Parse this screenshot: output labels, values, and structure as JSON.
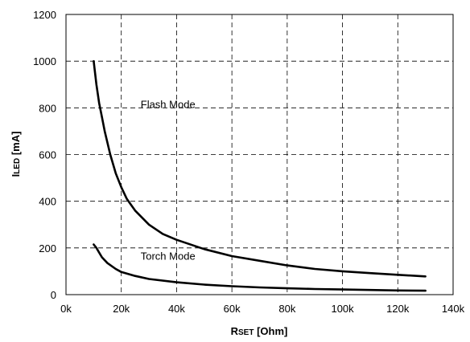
{
  "chart_data": {
    "type": "line",
    "title": "",
    "xlabel": {
      "main_small": "R",
      "sub": "SET",
      "rest": " [Ohm]"
    },
    "ylabel": {
      "main_small": "I",
      "sub": "LED",
      "rest": " [mA]"
    },
    "xlim": [
      0,
      140000
    ],
    "ylim": [
      0,
      1200
    ],
    "x_ticks": [
      0,
      20000,
      40000,
      60000,
      80000,
      100000,
      120000,
      140000
    ],
    "x_tick_labels": [
      "0k",
      "20k",
      "40k",
      "60k",
      "80k",
      "100k",
      "120k",
      "140k"
    ],
    "y_ticks": [
      0,
      200,
      400,
      600,
      800,
      1000,
      1200
    ],
    "y_tick_labels": [
      "0",
      "200",
      "400",
      "600",
      "800",
      "1000",
      "1200"
    ],
    "grid": true,
    "series": [
      {
        "name": "Flash Mode",
        "x": [
          10000,
          11000,
          12000,
          13000,
          14000,
          16000,
          18000,
          20000,
          22000,
          25000,
          30000,
          35000,
          40000,
          50000,
          60000,
          70000,
          80000,
          90000,
          100000,
          110000,
          120000,
          130000
        ],
        "y": [
          1000,
          900,
          820,
          760,
          700,
          600,
          520,
          460,
          410,
          360,
          300,
          260,
          235,
          195,
          165,
          145,
          125,
          110,
          100,
          92,
          85,
          78
        ]
      },
      {
        "name": "Torch Mode",
        "x": [
          10000,
          11000,
          12000,
          13000,
          15000,
          18000,
          20000,
          25000,
          30000,
          40000,
          50000,
          60000,
          70000,
          80000,
          90000,
          100000,
          110000,
          120000,
          130000
        ],
        "y": [
          215,
          200,
          180,
          160,
          135,
          110,
          97,
          80,
          67,
          53,
          43,
          36,
          31,
          27,
          24,
          22,
          20,
          18,
          17
        ]
      }
    ],
    "annotations": [
      {
        "text": "Flash Mode",
        "x": 27000,
        "y": 800
      },
      {
        "text": "Torch Mode",
        "x": 27000,
        "y": 150
      }
    ]
  }
}
